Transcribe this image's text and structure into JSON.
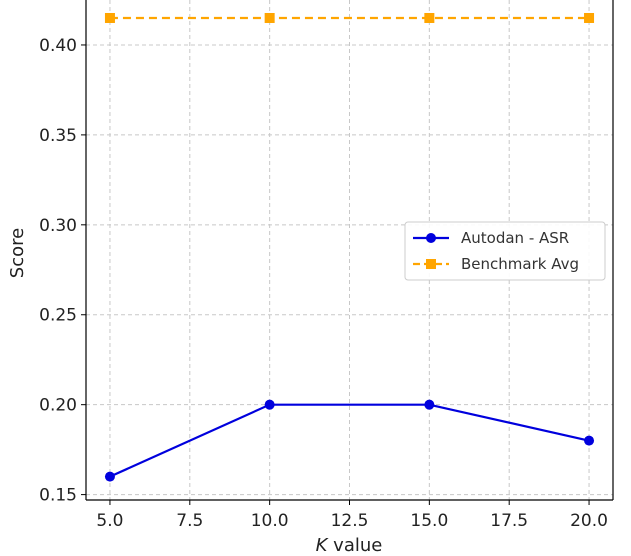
{
  "chart_data": {
    "type": "line",
    "xlabel_var": "K",
    "xlabel_rest": " value",
    "ylabel": "Score",
    "xlim": [
      4.25,
      20.75
    ],
    "ylim": [
      0.147,
      0.425
    ],
    "xticks": [
      5.0,
      7.5,
      10.0,
      12.5,
      15.0,
      17.5,
      20.0
    ],
    "xtick_labels": [
      "5.0",
      "7.5",
      "10.0",
      "12.5",
      "15.0",
      "17.5",
      "20.0"
    ],
    "yticks": [
      0.15,
      0.2,
      0.25,
      0.3,
      0.35,
      0.4
    ],
    "ytick_labels": [
      "0.15",
      "0.20",
      "0.25",
      "0.30",
      "0.35",
      "0.40"
    ],
    "grid": true,
    "legend_position": "center-right",
    "series": [
      {
        "name": "Autodan - ASR",
        "x": [
          5,
          10,
          15,
          20
        ],
        "values": [
          0.16,
          0.2,
          0.2,
          0.18
        ],
        "color": "#0000dd",
        "marker": "circle",
        "linestyle": "solid"
      },
      {
        "name": "Benchmark Avg",
        "x": [
          5,
          10,
          15,
          20
        ],
        "values": [
          0.415,
          0.415,
          0.415,
          0.415
        ],
        "color": "#ffa500",
        "marker": "square",
        "linestyle": "dashed"
      }
    ]
  }
}
